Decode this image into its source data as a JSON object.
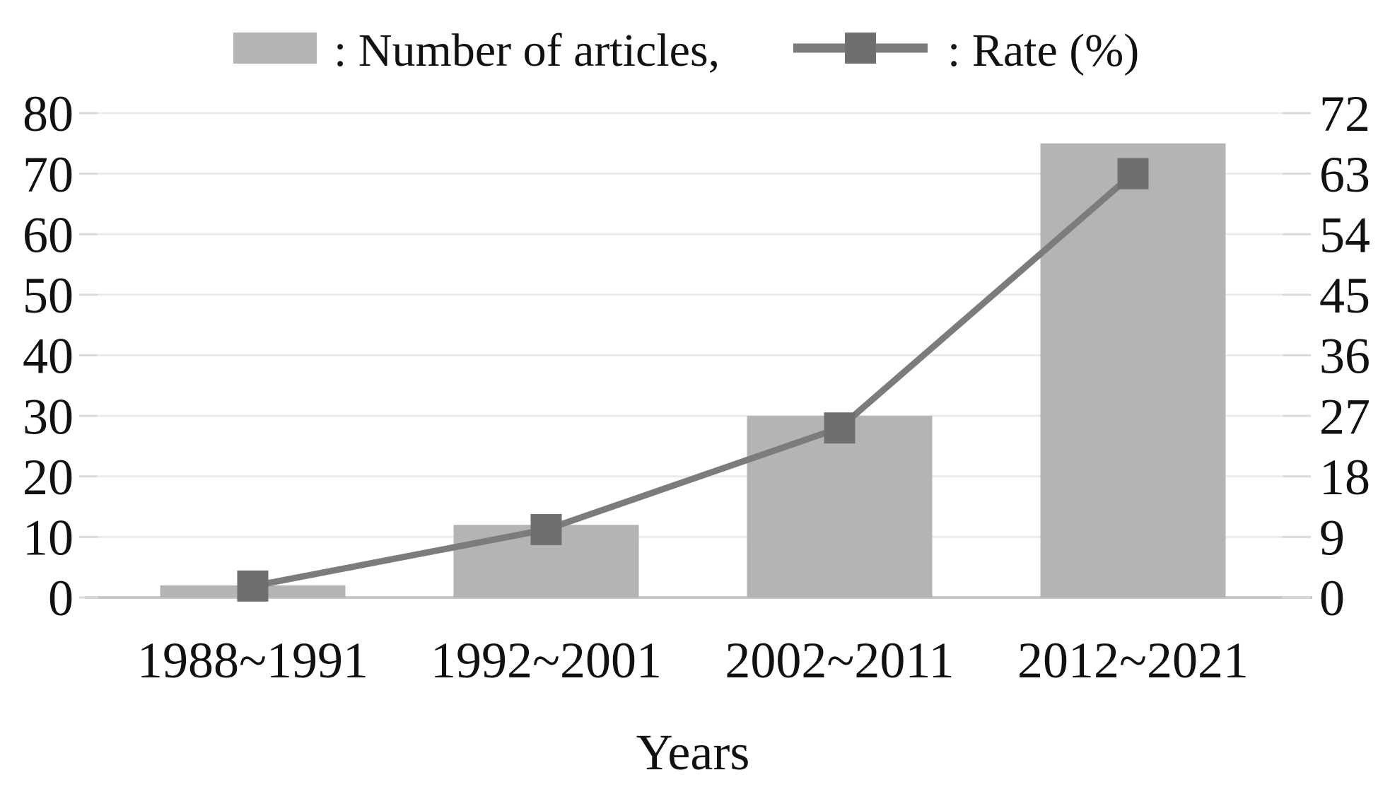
{
  "legend": {
    "items": [
      {
        "swatch": "bar",
        "label": ": Number of articles,"
      },
      {
        "swatch": "line-marker",
        "label": ": Rate (%)"
      }
    ]
  },
  "chart_data": {
    "type": "bar+line",
    "title": "",
    "xlabel": "Years",
    "categories": [
      "1988~1991",
      "1992~2001",
      "2002~2011",
      "2012~2021"
    ],
    "series": [
      {
        "name": "Number of articles",
        "type": "bar",
        "axis": "left",
        "values": [
          2,
          12,
          30,
          75
        ]
      },
      {
        "name": "Rate (%)",
        "type": "line",
        "axis": "right",
        "marker": "square",
        "values": [
          1.7,
          10.1,
          25.2,
          63.0
        ]
      }
    ],
    "left_axis": {
      "min": 0,
      "max": 80,
      "step": 10,
      "tick_labels": [
        "80",
        "70",
        "60",
        "50",
        "40",
        "30",
        "20",
        "10",
        "0"
      ]
    },
    "right_axis": {
      "min": 0,
      "max": 72,
      "step": 9,
      "tick_labels": [
        "72",
        "63",
        "54",
        "45",
        "36",
        "27",
        "18",
        "9",
        "0"
      ]
    },
    "grid": true,
    "legend_position": "top"
  },
  "colors": {
    "bar": "#b4b4b4",
    "line": "#7c7c7c",
    "marker": "#6f6f6f",
    "gridline": "#ebebeb",
    "baseline": "#c7c7c7",
    "tick": "#dadada",
    "text": "#111111",
    "background": "#ffffff"
  }
}
